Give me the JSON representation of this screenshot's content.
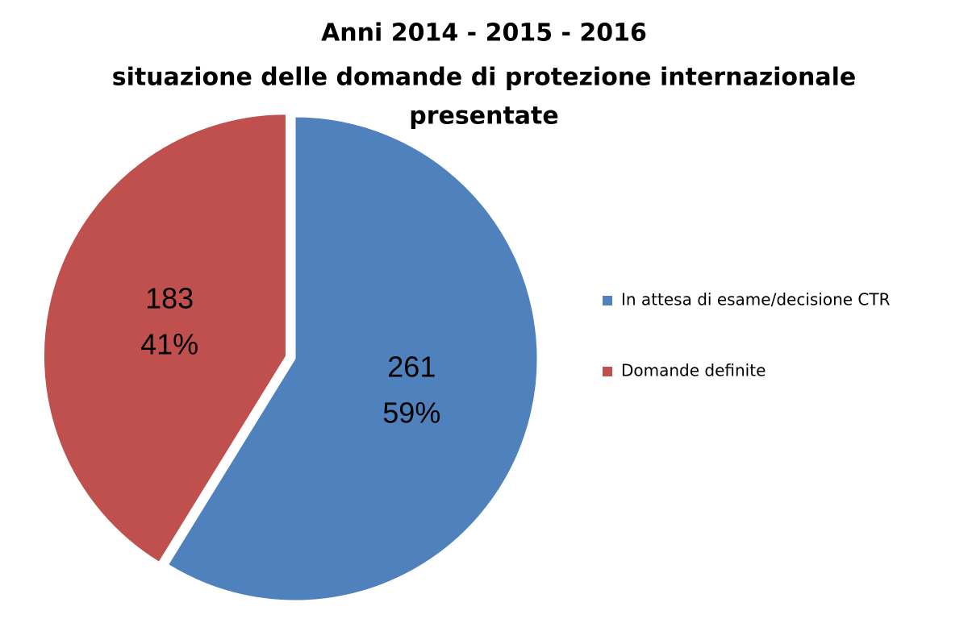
{
  "chart_data": {
    "type": "pie",
    "title": [
      "Anni 2014 - 2015 - 2016",
      "situazione delle domande di protezione internazionale",
      "presentate"
    ],
    "categories": [
      "In attesa di esame/decisione CTR",
      "Domande definite"
    ],
    "values": [
      261,
      183
    ],
    "percent_labels": [
      "59%",
      "41%"
    ],
    "colors": [
      "#4f81bd",
      "#c0504d"
    ],
    "exploded": [
      false,
      true
    ],
    "legend": "right"
  }
}
